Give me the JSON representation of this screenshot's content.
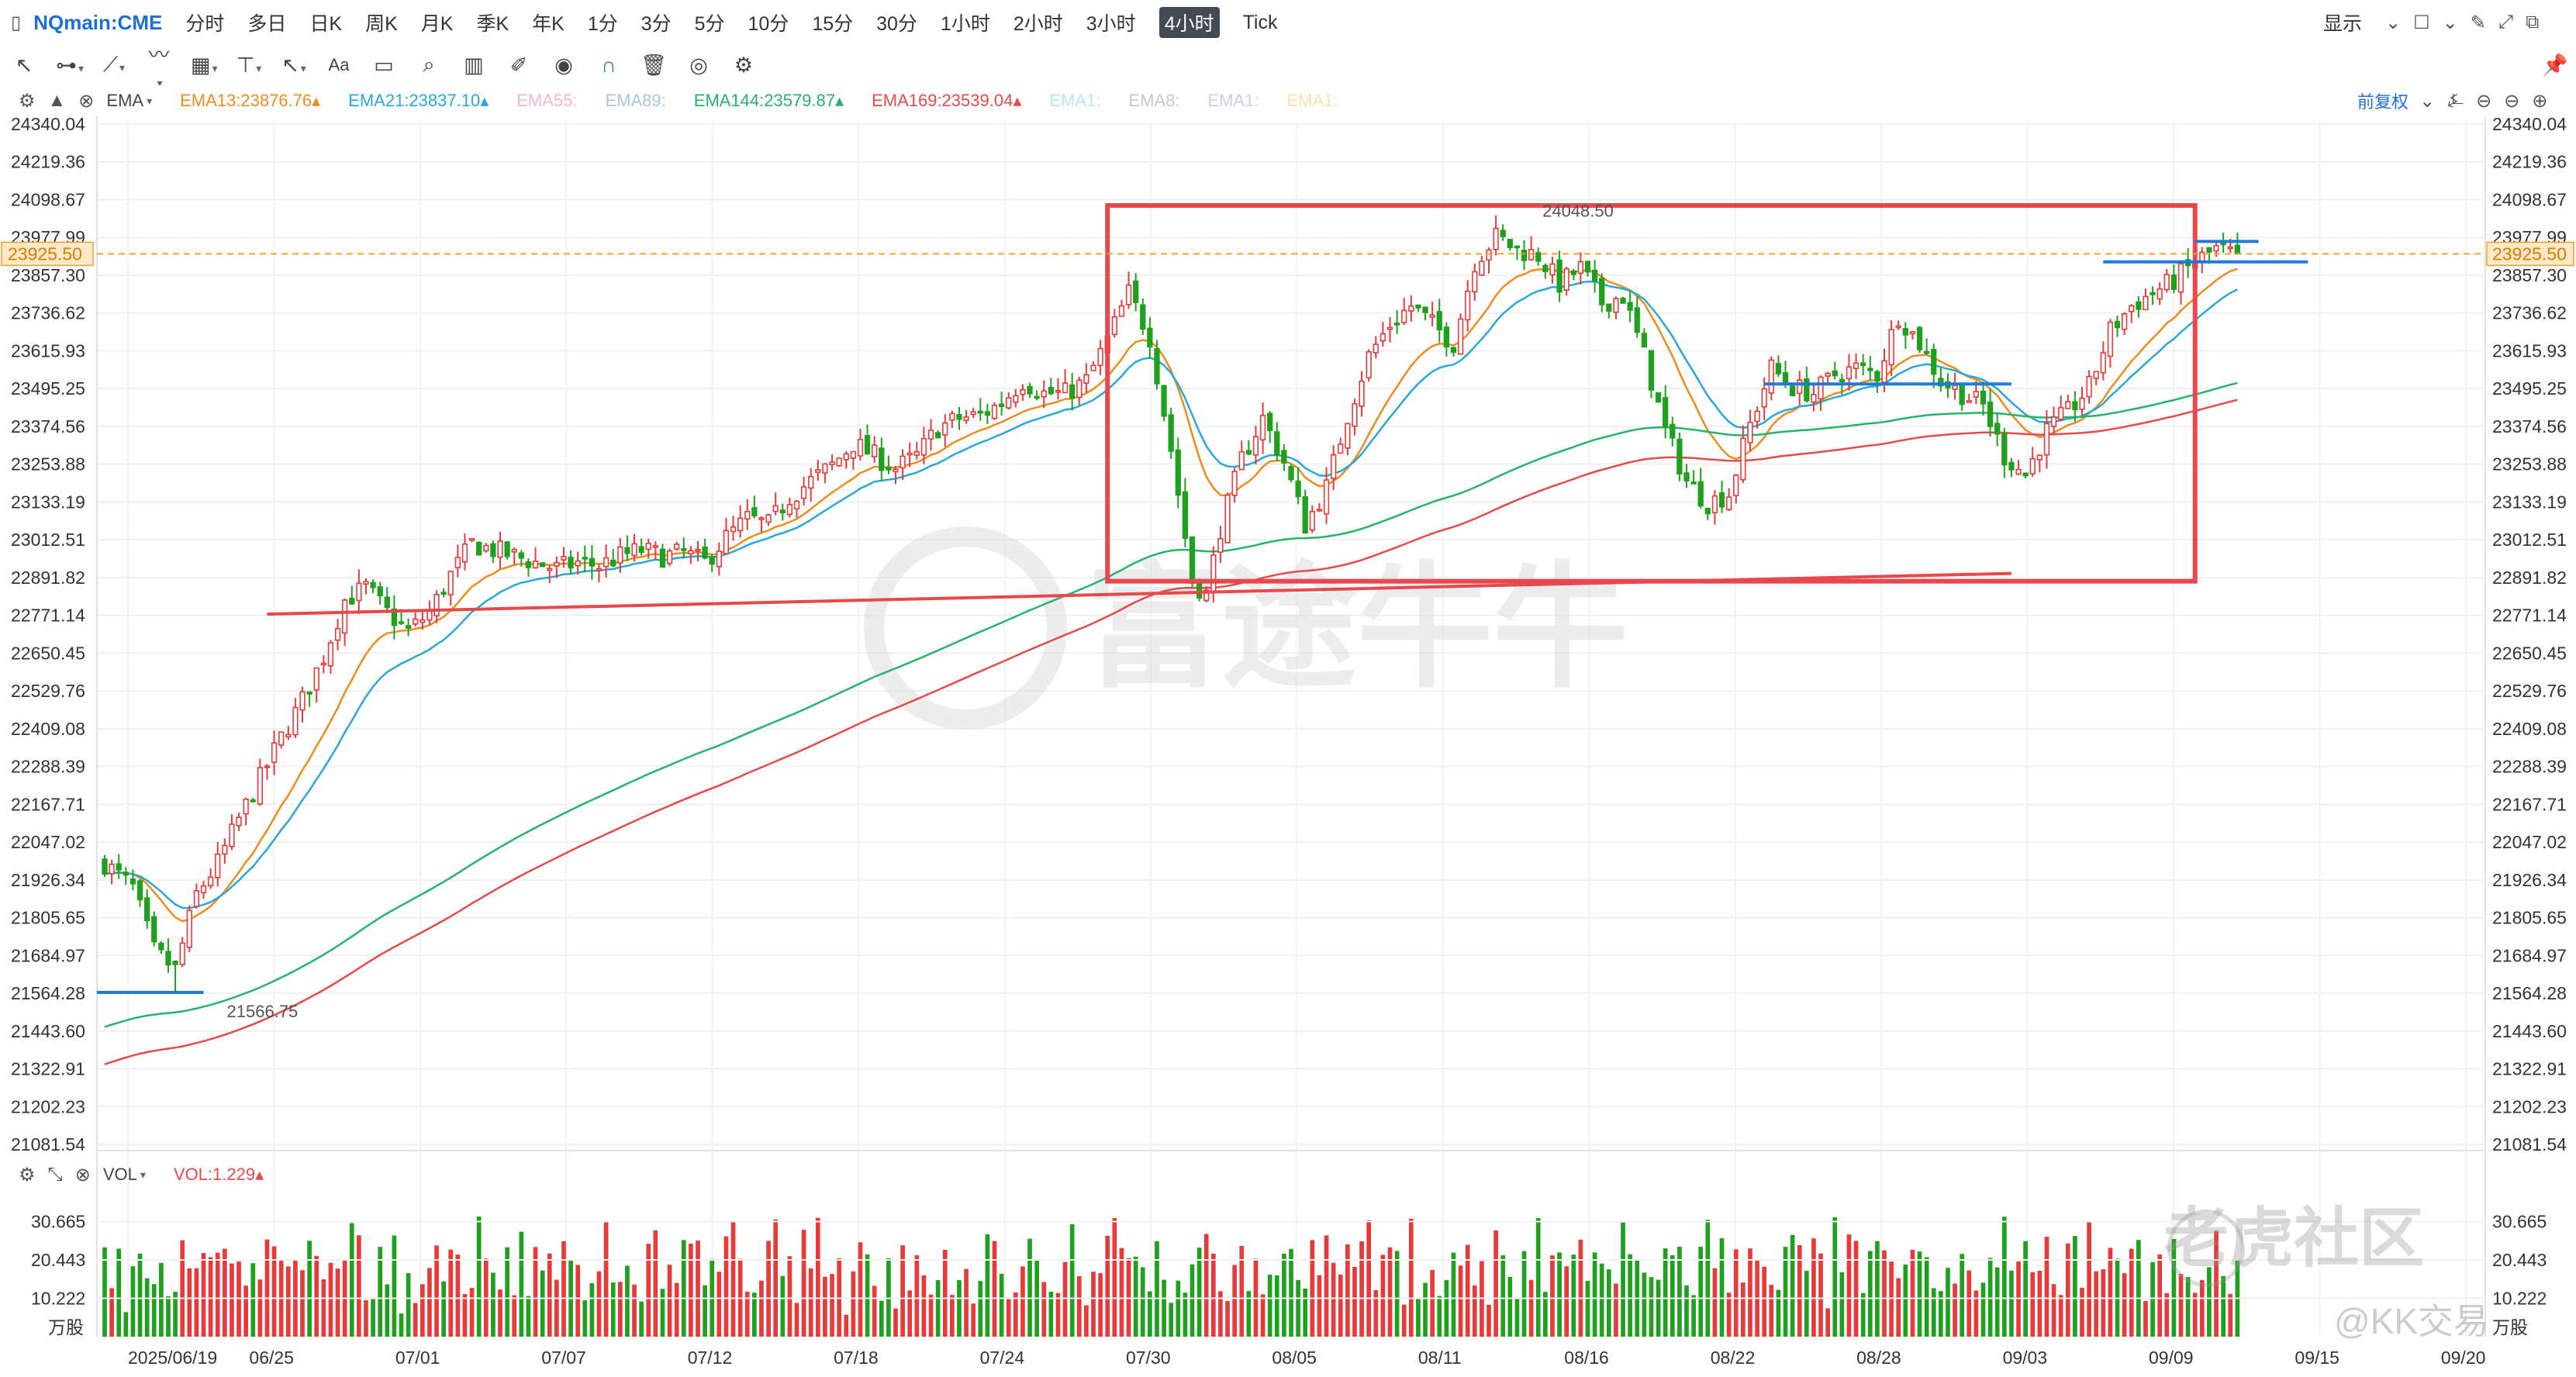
{
  "topbar": {
    "symbol": "NQmain:CME",
    "timeframes": [
      "分时",
      "多日",
      "日K",
      "周K",
      "月K",
      "季K",
      "年K",
      "1分",
      "3分",
      "5分",
      "10分",
      "15分",
      "30分",
      "1小时",
      "2小时",
      "3小时",
      "4小时",
      "Tick"
    ],
    "active_timeframe": "4小时",
    "display_label": "显示"
  },
  "toolbar": {
    "icons": [
      "cursor-icon",
      "line-tool-icon",
      "pen-tool-icon",
      "pattern-tool-icon",
      "measure-tool-icon",
      "arrow-tool-icon",
      "text-tool-icon",
      "comment-icon",
      "zoom-icon",
      "chart-type-icon",
      "brush-icon",
      "eye-icon",
      "magnet-icon",
      "trash-icon",
      "layers-icon",
      "gear-icon"
    ],
    "text_tool_label": "Aa"
  },
  "indicators": {
    "main": "EMA",
    "adjust_label": "前复权",
    "items": [
      {
        "label": "EMA13:23876.76",
        "color": "#f08c1e",
        "arrow": "▴"
      },
      {
        "label": "EMA21:23837.10",
        "color": "#2aa9d6",
        "arrow": "▴"
      },
      {
        "label": "EMA55:",
        "color": "#f4b8c8",
        "arrow": ""
      },
      {
        "label": "EMA89:",
        "color": "#a7c7e0",
        "arrow": ""
      },
      {
        "label": "EMA144:23579.87",
        "color": "#27b36b",
        "arrow": "▴"
      },
      {
        "label": "EMA169:23539.04",
        "color": "#e64a4a",
        "arrow": "▴"
      },
      {
        "label": "EMA1:",
        "color": "#b6e5f5",
        "arrow": ""
      },
      {
        "label": "EMA8:",
        "color": "#c7c7c7",
        "arrow": ""
      },
      {
        "label": "EMA1:",
        "color": "#d8c8ea",
        "arrow": ""
      },
      {
        "label": "EMA1:",
        "color": "#f5e3a8",
        "arrow": ""
      }
    ]
  },
  "price_axis": {
    "ticks": [
      "24340.04",
      "24219.36",
      "24098.67",
      "23977.99",
      "23857.30",
      "23736.62",
      "23615.93",
      "23495.25",
      "23374.56",
      "23253.88",
      "23133.19",
      "23012.51",
      "22891.82",
      "22771.14",
      "22650.45",
      "22529.76",
      "22409.08",
      "22288.39",
      "22167.71",
      "22047.02",
      "21926.34",
      "21805.65",
      "21684.97",
      "21564.28",
      "21443.60",
      "21322.91",
      "21202.23",
      "21081.54"
    ],
    "current_price": "23925.50",
    "high_label": "24048.50",
    "low_label": "21566.75"
  },
  "volume": {
    "indicator": "VOL",
    "value_label": "VOL:1.229",
    "ticks": [
      "30.665",
      "20.443",
      "10.222"
    ],
    "unit": "万股"
  },
  "x_axis": {
    "dates": [
      "2025/06/19",
      "06/25",
      "07/01",
      "07/07",
      "07/12",
      "07/18",
      "07/24",
      "07/30",
      "08/05",
      "08/11",
      "08/16",
      "08/22",
      "08/28",
      "09/03",
      "09/09",
      "09/15",
      "09/20"
    ]
  },
  "watermark": {
    "center_text": "富途牛牛",
    "corner_text": "老虎社区",
    "corner_user": "@KK交易"
  },
  "chart_data": {
    "type": "candlestick",
    "title": "",
    "ylim": [
      21081.54,
      24340.04
    ],
    "x_range": [
      "2025/06/19",
      "09/20"
    ],
    "last_price": 23925.5,
    "high": 24048.5,
    "low": 21566.75,
    "ema": {
      "EMA13": 23876.76,
      "EMA21": 23837.1,
      "EMA144": 23579.87,
      "EMA169": 23539.04
    },
    "colors": {
      "up": "#e83a3a",
      "down": "#1fa11f",
      "ema13": "#f08c1e",
      "ema21": "#2aa9d6",
      "ema144": "#27b36b",
      "ema169": "#e64a4a",
      "box": "#e8474c",
      "level": "#1f7ad8"
    },
    "anchors": [
      [
        0,
        21980
      ],
      [
        4,
        21900
      ],
      [
        7,
        21700
      ],
      [
        10,
        21640
      ],
      [
        13,
        21880
      ],
      [
        16,
        21980
      ],
      [
        19,
        22120
      ],
      [
        22,
        22250
      ],
      [
        25,
        22380
      ],
      [
        28,
        22500
      ],
      [
        31,
        22640
      ],
      [
        34,
        22820
      ],
      [
        37,
        22860
      ],
      [
        40,
        22780
      ],
      [
        43,
        22720
      ],
      [
        46,
        22780
      ],
      [
        49,
        22900
      ],
      [
        52,
        23000
      ],
      [
        55,
        22980
      ],
      [
        58,
        22960
      ],
      [
        61,
        22940
      ],
      [
        64,
        22920
      ],
      [
        67,
        22940
      ],
      [
        70,
        22930
      ],
      [
        73,
        22960
      ],
      [
        76,
        22980
      ],
      [
        79,
        22960
      ],
      [
        82,
        22970
      ],
      [
        85,
        22940
      ],
      [
        88,
        23020
      ],
      [
        91,
        23080
      ],
      [
        94,
        23060
      ],
      [
        97,
        23150
      ],
      [
        100,
        23200
      ],
      [
        103,
        23250
      ],
      [
        106,
        23320
      ],
      [
        109,
        23280
      ],
      [
        112,
        23240
      ],
      [
        115,
        23280
      ],
      [
        118,
        23370
      ],
      [
        121,
        23400
      ],
      [
        124,
        23410
      ],
      [
        127,
        23450
      ],
      [
        130,
        23520
      ],
      [
        133,
        23480
      ],
      [
        136,
        23480
      ],
      [
        139,
        23520
      ],
      [
        142,
        23650
      ],
      [
        145,
        23800
      ],
      [
        148,
        23660
      ],
      [
        151,
        23300
      ],
      [
        154,
        22880
      ],
      [
        156,
        22840
      ],
      [
        158,
        23050
      ],
      [
        161,
        23270
      ],
      [
        164,
        23400
      ],
      [
        167,
        23260
      ],
      [
        170,
        23060
      ],
      [
        173,
        23180
      ],
      [
        176,
        23410
      ],
      [
        179,
        23600
      ],
      [
        182,
        23700
      ],
      [
        185,
        23760
      ],
      [
        188,
        23700
      ],
      [
        191,
        23640
      ],
      [
        194,
        23900
      ],
      [
        197,
        23980
      ],
      [
        200,
        23940
      ],
      [
        203,
        23920
      ],
      [
        206,
        23830
      ],
      [
        209,
        23880
      ],
      [
        212,
        23770
      ],
      [
        215,
        23790
      ],
      [
        218,
        23600
      ],
      [
        221,
        23360
      ],
      [
        224,
        23200
      ],
      [
        227,
        23130
      ],
      [
        230,
        23160
      ],
      [
        233,
        23380
      ],
      [
        236,
        23560
      ],
      [
        239,
        23500
      ],
      [
        242,
        23480
      ],
      [
        245,
        23540
      ],
      [
        248,
        23560
      ],
      [
        251,
        23540
      ],
      [
        254,
        23730
      ],
      [
        257,
        23640
      ],
      [
        260,
        23520
      ],
      [
        263,
        23480
      ],
      [
        266,
        23440
      ],
      [
        269,
        23280
      ],
      [
        272,
        23220
      ],
      [
        275,
        23360
      ],
      [
        278,
        23420
      ],
      [
        281,
        23500
      ],
      [
        284,
        23680
      ],
      [
        287,
        23760
      ],
      [
        290,
        23800
      ],
      [
        293,
        23840
      ],
      [
        296,
        23900
      ],
      [
        299,
        23940
      ],
      [
        302,
        23920
      ]
    ],
    "levels": {
      "upper_high": 23900,
      "lower_left": 21566.75,
      "mid": 23510,
      "trend_start": [
        23,
        22775
      ],
      "trend_end": [
        270,
        22905
      ]
    },
    "box": {
      "from": 142,
      "to": 296,
      "top": 24080,
      "bottom": 22880
    }
  }
}
